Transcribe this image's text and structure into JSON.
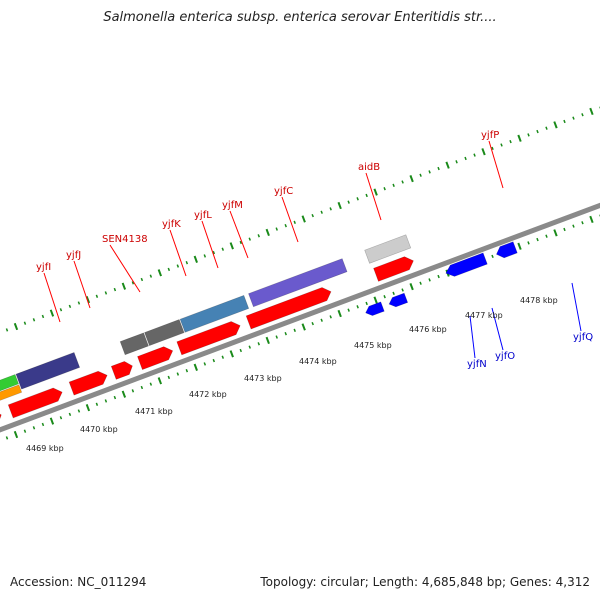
{
  "title": "Salmonella enterica subsp. enterica serovar Enteritidis str....",
  "footer": {
    "accession": "Accession: NC_011294",
    "topology": "Topology: circular; Length: 4,685,848 bp; Genes: 4,312"
  },
  "gene_labels_top": [
    "yjfI",
    "yjfJ",
    "SEN4138",
    "yjfK",
    "yjfL",
    "yjfM",
    "yjfC",
    "aidB",
    "yjfP"
  ],
  "gene_labels_bottom": [
    "yjfN",
    "yjfO",
    "yjfQ"
  ],
  "scale_labels": [
    "4469 kbp",
    "4470 kbp",
    "4471 kbp",
    "4472 kbp",
    "4473 kbp",
    "4474 kbp",
    "4475 kbp",
    "4476 kbp",
    "4477 kbp",
    "4478 kbp"
  ],
  "colors": {
    "cds_forward": "#ff0000",
    "cds_reverse": "#0000ff",
    "label_forward": "#cc0000",
    "label_reverse": "#0000cc",
    "backbone": "#888888",
    "gc_ticks": "#1a8a1a",
    "purple_feature": "#6a5acd",
    "dark_purple_feature": "#3a3a8a",
    "steel_blue_feature": "#4682b4",
    "gray_feature": "#666666",
    "green_feature": "#33cc33",
    "orange_feature": "#ff9900",
    "pink_feature": "#ee8888"
  }
}
